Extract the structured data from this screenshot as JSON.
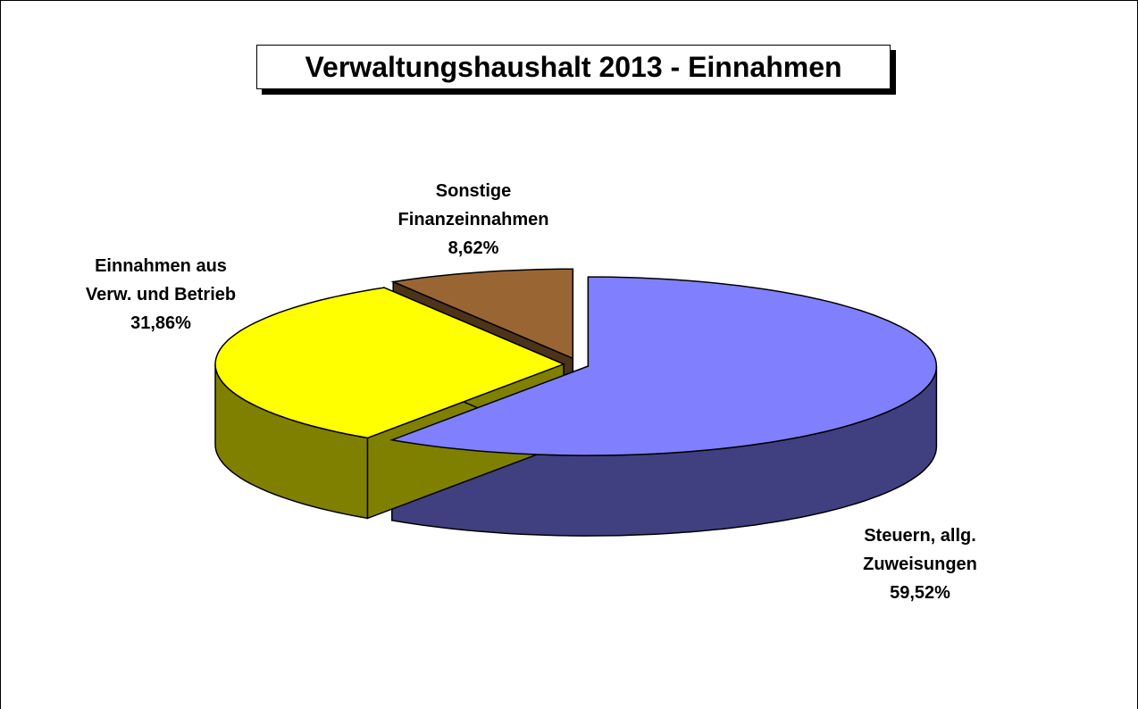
{
  "chart_data": {
    "type": "pie3d",
    "title": "Verwaltungshaushalt 2013 - Einnahmen",
    "categories": [
      "Steuern, allg.\nZuweisungen",
      "Einnahmen aus\nVerw. und Betrieb",
      "Sonstige\nFinanzeinnahmen"
    ],
    "values": [
      59.52,
      31.86,
      8.62
    ],
    "value_labels": [
      "59,52%",
      "31,86%",
      "8,62%"
    ],
    "colors": [
      "#8080ff",
      "#ffff00",
      "#996633"
    ],
    "side_colors": [
      "#404080",
      "#808000",
      "#4d3319"
    ]
  }
}
